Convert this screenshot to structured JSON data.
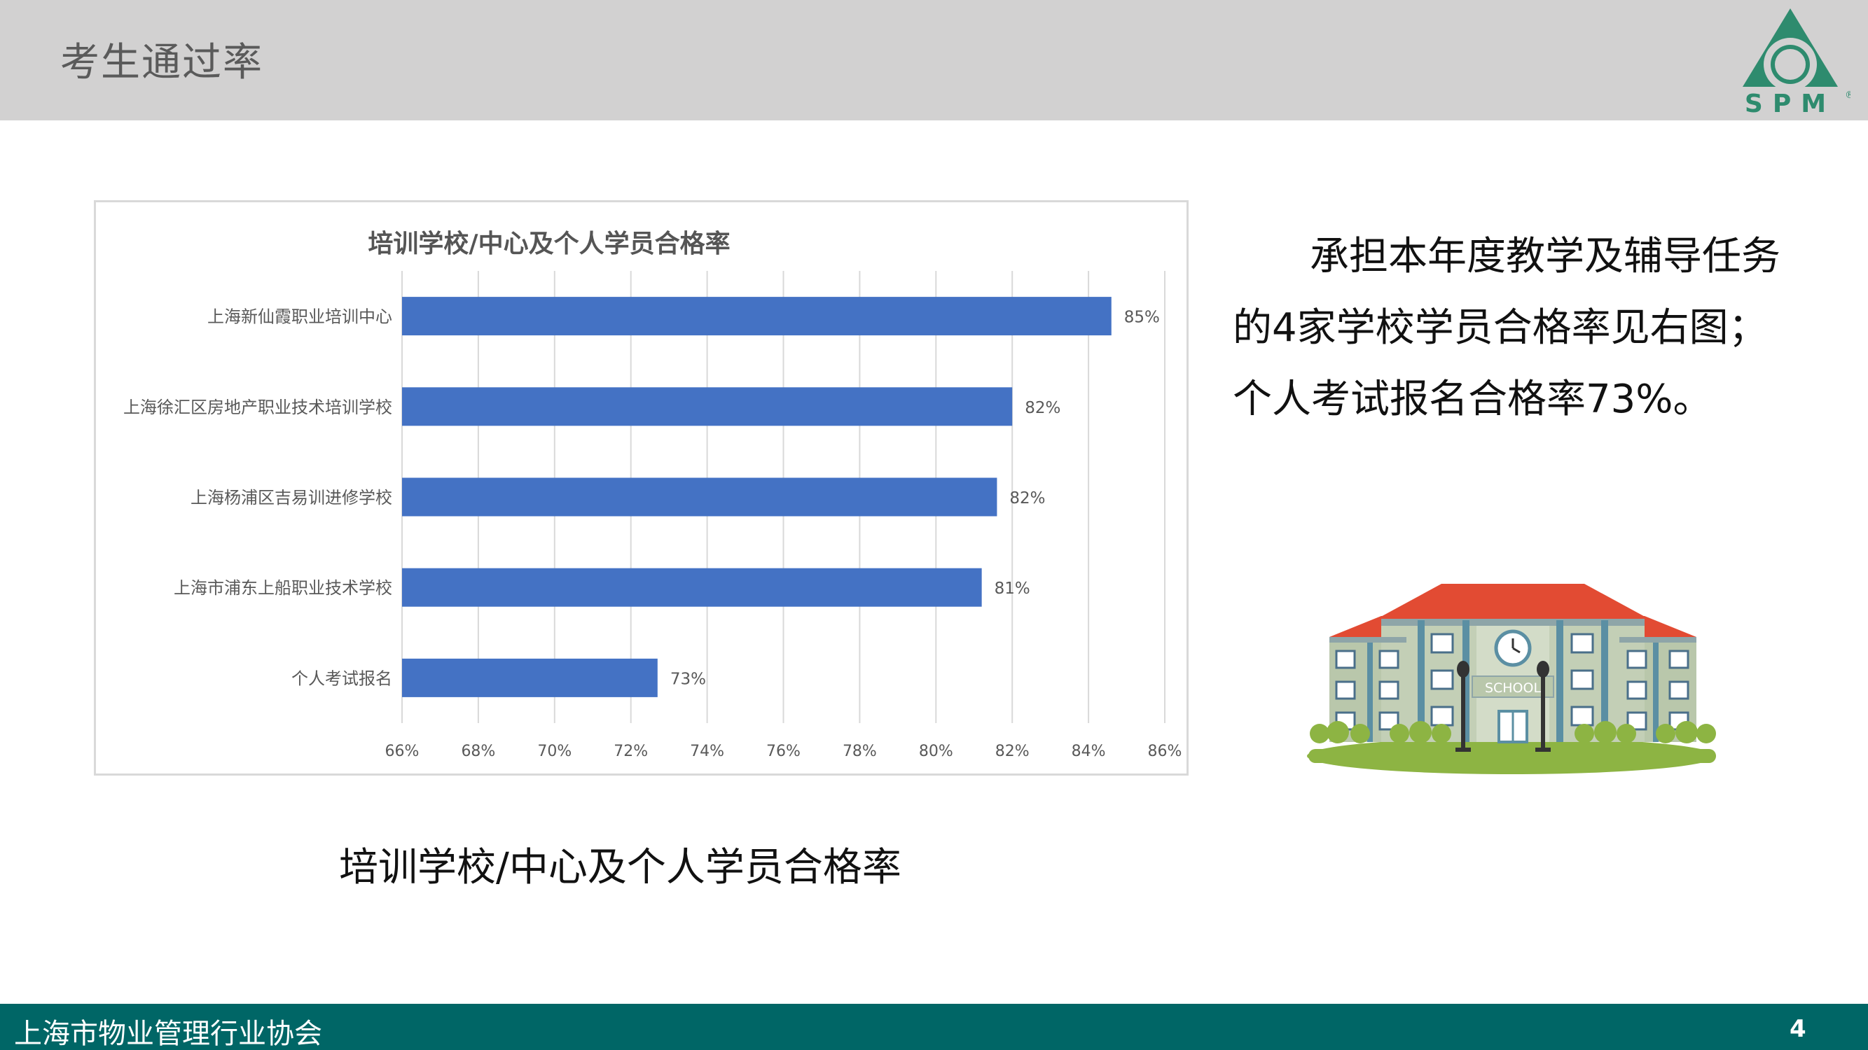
{
  "slide": {
    "title": "考生通过率",
    "description": "承担本年度教学及辅导任务的4家学校学员合格率见右图；个人考试报名合格率73%。",
    "caption": "培训学校/中心及个人学员合格率"
  },
  "logo": {
    "text": "SPM",
    "registered_mark": "®",
    "color": "#2e8b6e"
  },
  "illustration": {
    "sign_text": "SCHOOL"
  },
  "footer": {
    "org_name": "上海市物业管理行业协会",
    "page_number": "4"
  },
  "chart_data": {
    "type": "bar",
    "orientation": "horizontal",
    "title": "培训学校/中心及个人学员合格率",
    "categories": [
      "上海新仙霞职业培训中心",
      "上海徐汇区房地产职业技术培训学校",
      "上海杨浦区吉易训进修学校",
      "上海市浦东上船职业技术学校",
      "个人考试报名"
    ],
    "values": [
      84.6,
      82.0,
      81.6,
      81.2,
      72.7
    ],
    "data_labels": [
      "85%",
      "82%",
      "82%",
      "81%",
      "73%"
    ],
    "xlim": [
      66,
      86
    ],
    "x_ticks": [
      66,
      68,
      70,
      72,
      74,
      76,
      78,
      80,
      82,
      84,
      86
    ],
    "x_tick_labels": [
      "66%",
      "68%",
      "70%",
      "72%",
      "74%",
      "76%",
      "78%",
      "80%",
      "82%",
      "84%",
      "86%"
    ],
    "bar_color": "#4472c4",
    "grid": true,
    "legend": "none"
  }
}
